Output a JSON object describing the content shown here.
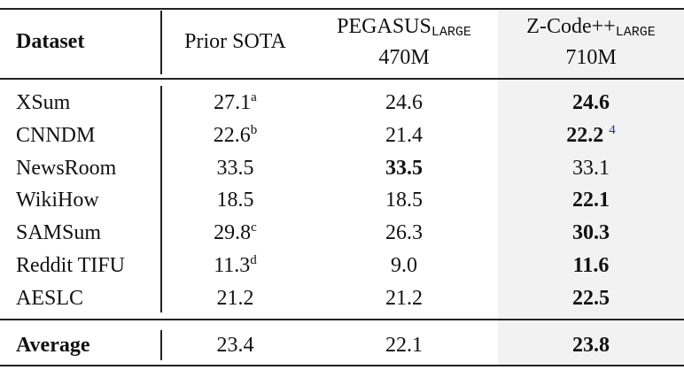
{
  "header": {
    "dataset": "Dataset",
    "prior_sota": "Prior SOTA",
    "pegasus": {
      "name": "PEGASUS",
      "subscript": "LARGE",
      "size": "470M"
    },
    "zcode": {
      "name": "Z-Code++",
      "subscript": "LARGE",
      "size": "710M"
    }
  },
  "rows": [
    {
      "dataset": "XSum",
      "prior_sota": "27.1",
      "prior_sota_note": "a",
      "pegasus": "24.6",
      "zcode": "24.6"
    },
    {
      "dataset": "CNNDM",
      "prior_sota": "22.6",
      "prior_sota_note": "b",
      "pegasus": "21.4",
      "zcode": "22.2",
      "zcode_note": "4"
    },
    {
      "dataset": "NewsRoom",
      "prior_sota": "33.5",
      "pegasus": "33.5",
      "zcode": "33.1"
    },
    {
      "dataset": "WikiHow",
      "prior_sota": "18.5",
      "pegasus": "18.5",
      "zcode": "22.1"
    },
    {
      "dataset": "SAMSum",
      "prior_sota": "29.8",
      "prior_sota_note": "c",
      "pegasus": "26.3",
      "zcode": "30.3"
    },
    {
      "dataset": "Reddit TIFU",
      "prior_sota": "11.3",
      "prior_sota_note": "d",
      "pegasus": "9.0",
      "zcode": "11.6"
    },
    {
      "dataset": "AESLC",
      "prior_sota": "21.2",
      "pegasus": "21.2",
      "zcode": "22.5"
    }
  ],
  "average": {
    "dataset": "Average",
    "prior_sota": "23.4",
    "pegasus": "22.1",
    "zcode": "23.8"
  }
}
